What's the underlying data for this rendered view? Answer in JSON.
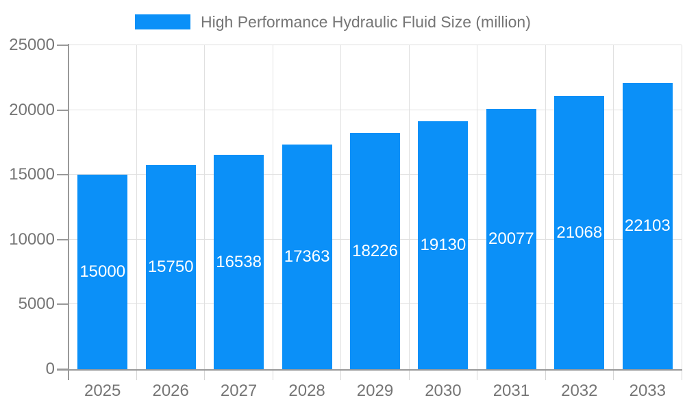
{
  "chart_data": {
    "type": "bar",
    "title": "High Performance Hydraulic Fluid Size (million)",
    "categories": [
      "2025",
      "2026",
      "2027",
      "2028",
      "2029",
      "2030",
      "2031",
      "2032",
      "2033"
    ],
    "values": [
      15000,
      15750,
      16538,
      17363,
      18226,
      19130,
      20077,
      21068,
      22103
    ],
    "xlabel": "",
    "ylabel": "",
    "ylim": [
      0,
      25000
    ],
    "yticks": [
      0,
      5000,
      10000,
      15000,
      20000,
      25000
    ],
    "grid": true,
    "legend_position": "top-center",
    "bar_labels_inside": true,
    "colors": {
      "bar": "#0b90f8",
      "bar_label": "#ffffff",
      "axis": "#999999",
      "grid": "#e0e0e0",
      "minor_tick": "#d6d6d6",
      "text": "#757575"
    }
  }
}
